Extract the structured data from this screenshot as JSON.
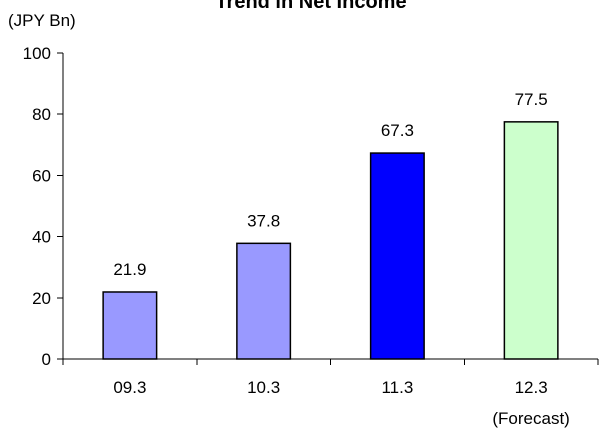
{
  "chart_data": {
    "type": "bar",
    "title": "Trend in Net Income",
    "unit_label": "(JPY  Bn)",
    "xlabel": "",
    "ylabel": "",
    "categories": [
      "09.3",
      "10.3",
      "11.3",
      "12.3"
    ],
    "category_notes": [
      "",
      "",
      "",
      "(Forecast)"
    ],
    "values": [
      21.9,
      37.8,
      67.3,
      77.5
    ],
    "data_labels": [
      "21.9",
      "37.8",
      "67.3",
      "77.5"
    ],
    "bar_colors": [
      "#9999FF",
      "#9999FF",
      "#0000FF",
      "#CCFFCC"
    ],
    "ylim": [
      0,
      100
    ],
    "yticks": [
      0,
      20,
      40,
      60,
      80,
      100
    ],
    "grid": false,
    "legend": "none"
  }
}
